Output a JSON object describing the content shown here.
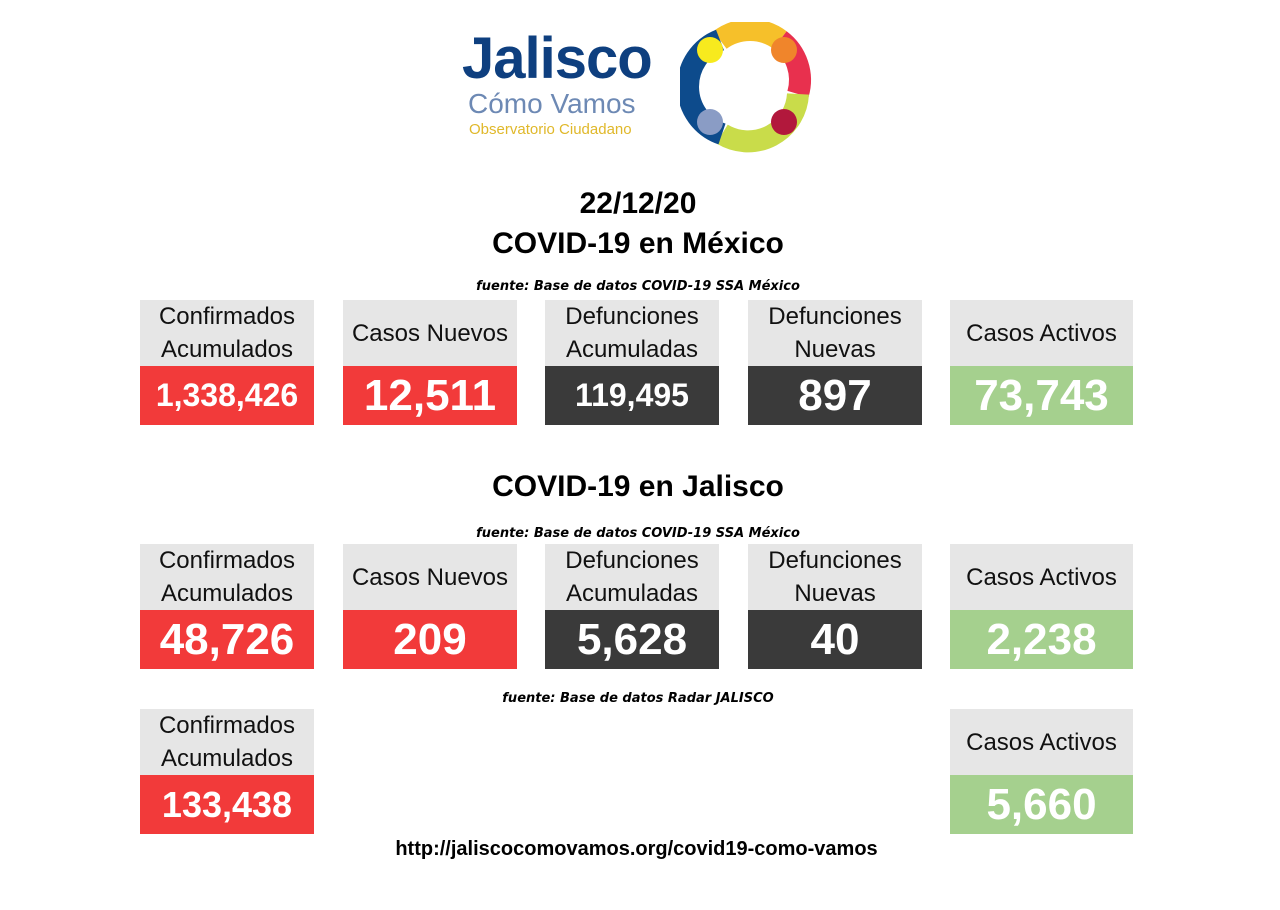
{
  "logo": {
    "line1": "Jalisco",
    "line2": "Cómo Vamos",
    "line3": "Observatorio Ciudadano",
    "colors": {
      "blue": "#0e3f7f",
      "light_blue": "#6d89b4",
      "yellow": "#e0b82a"
    }
  },
  "date": "22/12/20",
  "mexico": {
    "title": "COVID-19 en México",
    "source": "fuente: Base de datos COVID-19 SSA México",
    "cards": [
      {
        "label": "Confirmados Acumulados",
        "value": "1,338,426"
      },
      {
        "label": "Casos Nuevos",
        "value": "12,511"
      },
      {
        "label": "Defunciones Acumuladas",
        "value": "119,495"
      },
      {
        "label": "Defunciones Nuevas",
        "value": "897"
      },
      {
        "label": "Casos Activos",
        "value": "73,743"
      }
    ]
  },
  "jalisco": {
    "title": "COVID-19 en Jalisco",
    "source": "fuente: Base de datos COVID-19 SSA México",
    "cards": [
      {
        "label": "Confirmados Acumulados",
        "value": "48,726"
      },
      {
        "label": "Casos Nuevos",
        "value": "209"
      },
      {
        "label": "Defunciones Acumuladas",
        "value": "5,628"
      },
      {
        "label": "Defunciones Nuevas",
        "value": "40"
      },
      {
        "label": "Casos Activos",
        "value": "2,238"
      }
    ]
  },
  "radar": {
    "source": "fuente: Base de datos Radar JALISCO",
    "cards": [
      {
        "label": "Confirmados Acumulados",
        "value": "133,438"
      },
      {
        "label": "Casos Activos",
        "value": "5,660"
      }
    ]
  },
  "url": "http://jaliscocomovamos.org/covid19-como-vamos",
  "colors": {
    "red": "#f23a3a",
    "dark": "#3a3a3a",
    "green": "#a5d08e",
    "label_bg": "#e6e6e6"
  }
}
